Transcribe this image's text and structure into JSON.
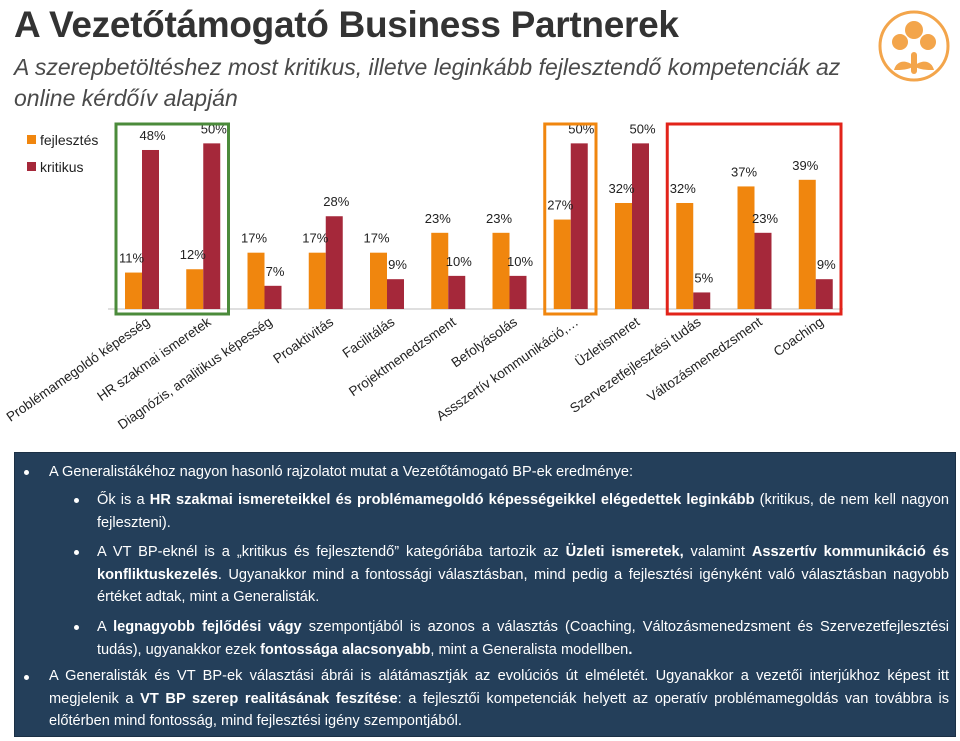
{
  "header": {
    "title": "A Vezetőtámogató Business Partnerek",
    "subtitle": "A szerepbetöltéshez most kritikus, illetve leginkább fejlesztendő kompetenciák az online kérdőív alapján"
  },
  "colors": {
    "fejlesztes": "#f0860e",
    "kritikus": "#a5283a",
    "highlight_green": "#4b8b3b",
    "highlight_orange": "#f0860e",
    "highlight_red": "#e2231a",
    "panel_bg": "#243f5a",
    "logo": "#f3a54b"
  },
  "logo_icon": "flower-sun-logo-icon",
  "chart_data": {
    "type": "bar",
    "categories": [
      "Problémamegoldó képesség",
      "HR szakmai ismeretek",
      "Diagnózis, analitikus képesség",
      "Proaktivitás",
      "Facilitálás",
      "Projektmenedzsment",
      "Befolyásolás",
      "Assszertív kommunikáció,…",
      "Üzletismeret",
      "Szervezetfejlesztési tudás",
      "Változásmenedzsment",
      "Coaching"
    ],
    "series": [
      {
        "name": "fejlesztés",
        "values": [
          11,
          12,
          17,
          17,
          17,
          23,
          23,
          27,
          32,
          32,
          37,
          39
        ],
        "labels": [
          "11%",
          "12%",
          "17%",
          "17%",
          "17%",
          "23%",
          "23%",
          "27%",
          "32%",
          "32%",
          "37%",
          "39%"
        ]
      },
      {
        "name": "kritikus",
        "values": [
          48,
          50,
          7,
          28,
          9,
          10,
          10,
          50,
          50,
          5,
          23,
          9
        ],
        "labels": [
          "48%",
          "50%",
          "7%",
          "28%",
          "9%",
          "10%",
          "10%",
          "50%",
          "50%",
          "5%",
          "23%",
          "9%"
        ]
      }
    ],
    "ylim": [
      0,
      55
    ],
    "grid": false,
    "legend": "top-left",
    "highlight_groups": [
      {
        "color": "green",
        "from": 0,
        "to": 1
      },
      {
        "color": "orange",
        "from": 7,
        "to": 7
      },
      {
        "color": "red",
        "from": 9,
        "to": 11
      }
    ]
  },
  "panel": {
    "b1": "A Generalistákéhoz nagyon hasonló rajzolatot mutat a Vezetőtámogató BP-ek eredménye:",
    "b2a": "Ők is a ",
    "b2b": "HR szakmai ismereteikkel és problémamegoldó képességeikkel elégedettek leginkább",
    "b2c": " (kritikus, de nem kell nagyon fejleszteni).",
    "b3a": "A VT BP-eknél is a „kritikus és fejlesztendő” kategóriába tartozik az ",
    "b3b": "Üzleti ismeretek,",
    "b3c": " valamint ",
    "b3d": "Asszertív kommunikáció és konfliktuskezelés",
    "b3e": ". Ugyanakkor mind a fontossági választásban, mind pedig a fejlesztési igényként való választásban nagyobb értéket adtak, mint a Generalisták.",
    "b4a": "A ",
    "b4b": "legnagyobb fejlődési vágy",
    "b4c": " szempontjából is azonos a választás (Coaching, Változásmenedzsment és Szervezetfejlesztési tudás), ugyanakkor ezek ",
    "b4d": "fontossága alacsonyabb",
    "b4e": ", mint a Generalista modellben",
    "b4f": ".",
    "b5a": "A Generalisták és VT BP-ek választási ábrái is alátámasztják az evolúciós út elméletét. Ugyanakkor a vezetői interjúkhoz képest itt megjelenik a ",
    "b5b": "VT BP szerep realitásának feszítése",
    "b5c": ": a fejlesztői kompetenciák helyett az operatív problémamegoldás van továbbra is előtérben mind fontosság, mind fejlesztési igény szempontjából."
  }
}
